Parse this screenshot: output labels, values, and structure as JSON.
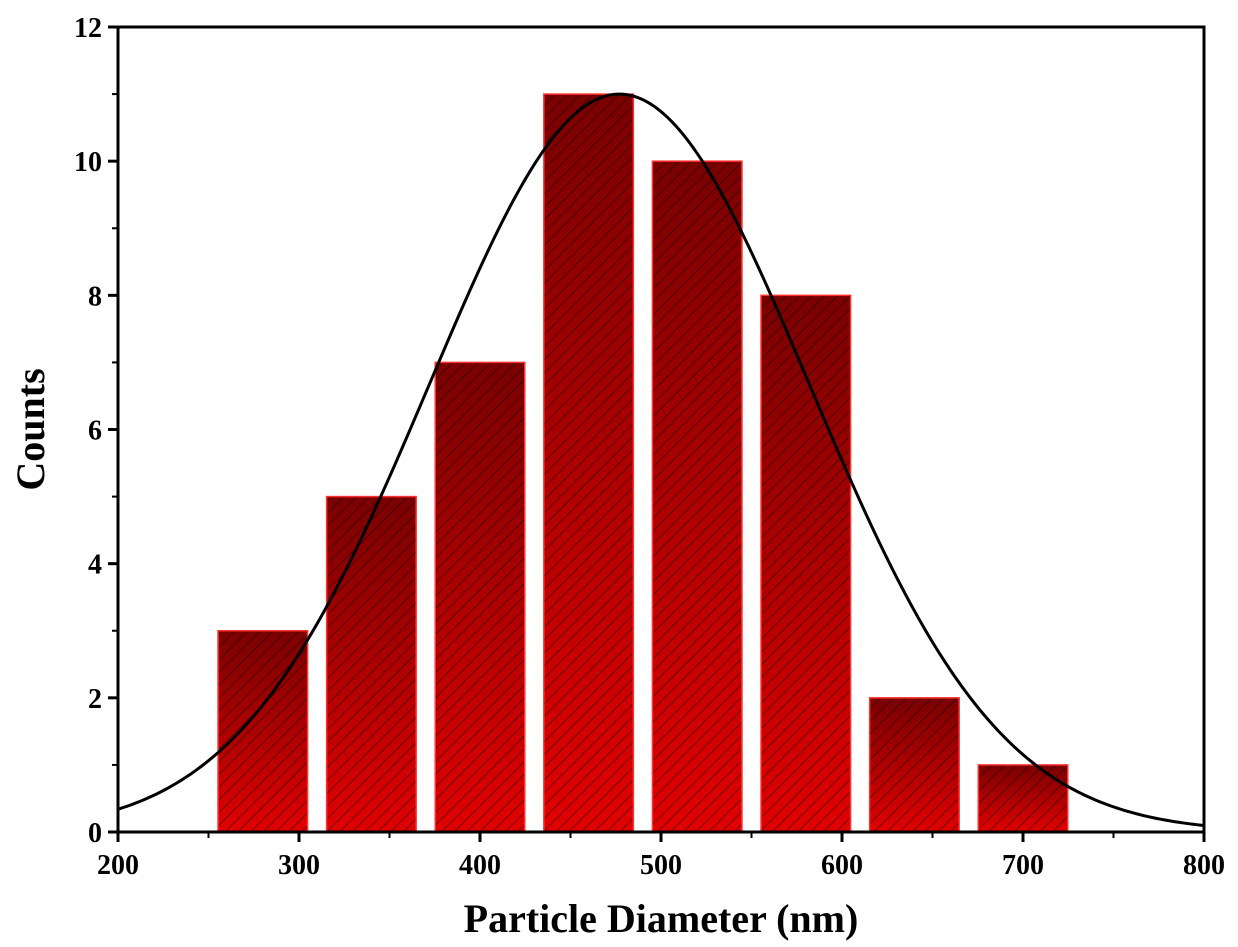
{
  "chart_data": {
    "type": "bar",
    "title": "",
    "xlabel": "Particle Diameter (nm)",
    "ylabel": "Counts",
    "xlim": [
      200,
      800
    ],
    "ylim": [
      0,
      12
    ],
    "x_ticks": [
      200,
      300,
      400,
      500,
      600,
      700,
      800
    ],
    "x_tick_labels": [
      "200",
      "300",
      "400",
      "500",
      "600",
      "700",
      "800"
    ],
    "y_ticks": [
      0,
      2,
      4,
      6,
      8,
      10,
      12
    ],
    "y_tick_labels": [
      "0",
      "2",
      "4",
      "6",
      "8",
      "10",
      "12"
    ],
    "bin_width": 50,
    "bars": [
      {
        "center": 280,
        "value": 3
      },
      {
        "center": 340,
        "value": 5
      },
      {
        "center": 400,
        "value": 7
      },
      {
        "center": 460,
        "value": 11
      },
      {
        "center": 520,
        "value": 10
      },
      {
        "center": 580,
        "value": 8
      },
      {
        "center": 640,
        "value": 2
      },
      {
        "center": 700,
        "value": 1
      }
    ],
    "fit_curve": {
      "type": "gaussian",
      "amplitude": 11,
      "mean": 477,
      "sigma": 105
    },
    "grid": false,
    "legend": "none",
    "colors": {
      "bar_fill": "#e00000",
      "bar_dark": "#7a0000",
      "bar_edge": "#ff3030",
      "hatch": "#000000",
      "curve": "#000000",
      "axis": "#000000"
    }
  }
}
